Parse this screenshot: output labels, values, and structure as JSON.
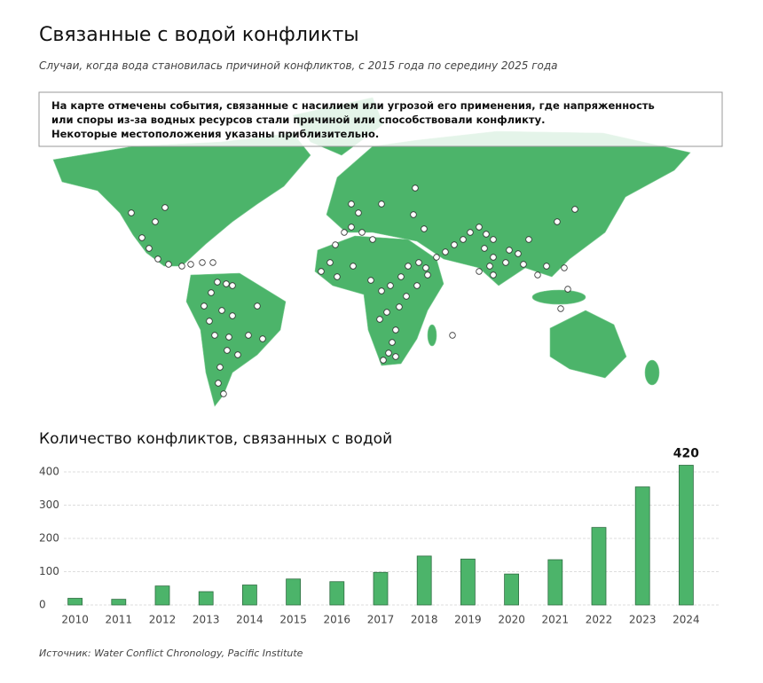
{
  "header": {
    "title": "Связанные с водой конфликты",
    "subtitle": "Случаи, когда вода становилась причиной конфликтов, с 2015 года по середину 2025 года"
  },
  "map": {
    "note": [
      "На карте отмечены события, связанные с насилием или угрозой его применения, где напряженность",
      "или споры из-за водных ресурсов стали причиной или способствовали конфликту.",
      "Некоторые местоположения указаны приблизительно."
    ]
  },
  "chart_data": {
    "type": "bar",
    "title": "Количество конфликтов, связанных с водой",
    "categories": [
      "2010",
      "2011",
      "2012",
      "2013",
      "2014",
      "2015",
      "2016",
      "2017",
      "2018",
      "2019",
      "2020",
      "2021",
      "2022",
      "2023",
      "2024"
    ],
    "values": [
      20,
      17,
      57,
      40,
      60,
      78,
      70,
      98,
      147,
      138,
      93,
      136,
      233,
      355,
      420
    ],
    "value_labels": [
      null,
      null,
      null,
      null,
      null,
      null,
      null,
      null,
      null,
      null,
      null,
      null,
      null,
      null,
      "420"
    ],
    "color": "#4cb46a",
    "ylim": [
      0,
      420
    ],
    "yticks": [
      0,
      100,
      200,
      300,
      400
    ],
    "grid": true
  },
  "source": "Источник: Water Conflict Chronology, Pacific Institute"
}
